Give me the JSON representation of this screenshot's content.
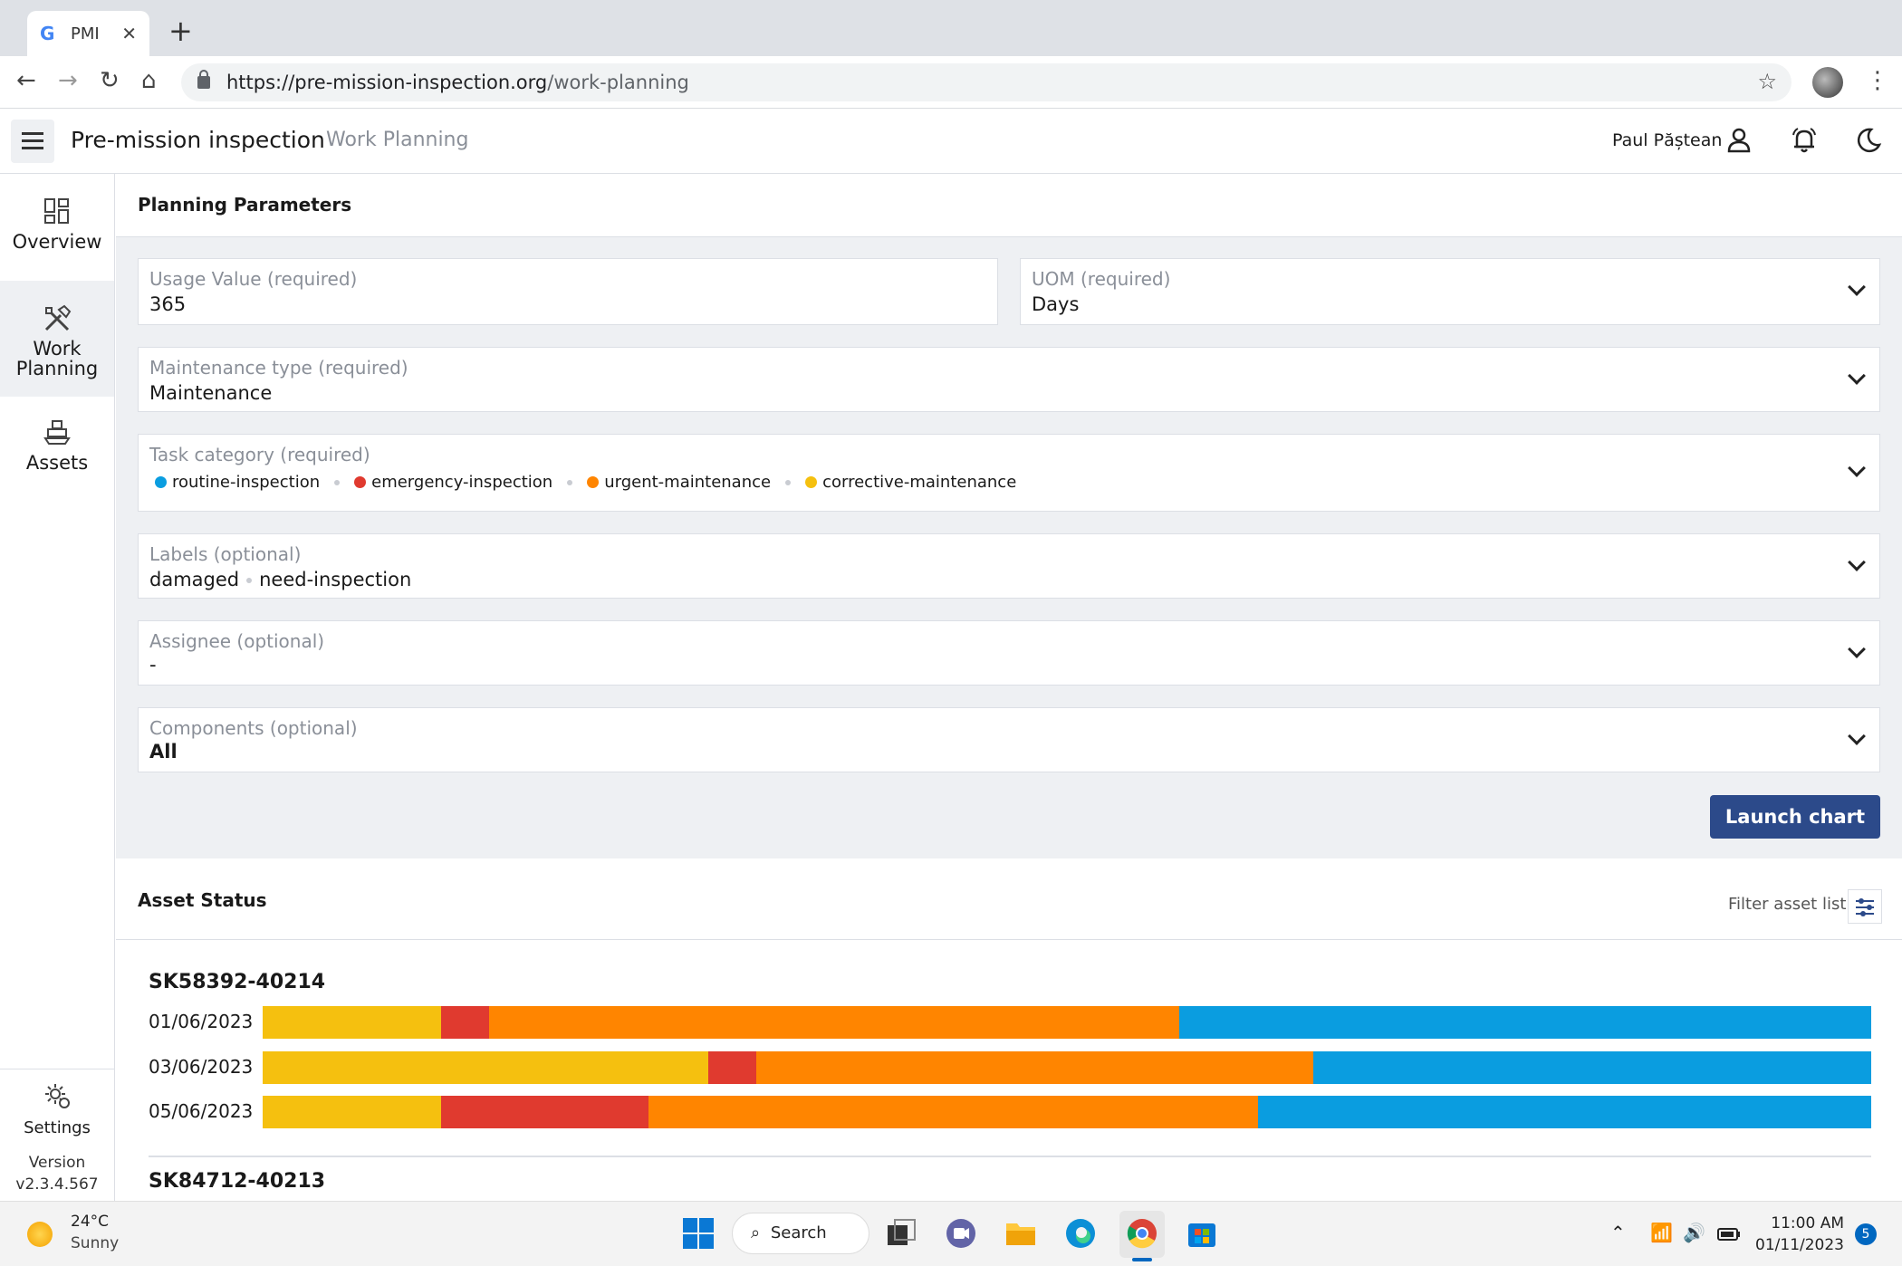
{
  "browser": {
    "tab_title": "PMI",
    "tab_favicon": "G",
    "url_host": "https://pre-mission-inspection.org",
    "url_path": "/work-planning"
  },
  "header": {
    "app_title": "Pre-mission inspection",
    "page_title": "Work Planning",
    "user_name": "Paul Păștean"
  },
  "sidebar": {
    "items": [
      {
        "label": "Overview",
        "icon": "dashboard-icon"
      },
      {
        "label_line1": "Work",
        "label_line2": "Planning",
        "icon": "tools-icon"
      },
      {
        "label": "Assets",
        "icon": "ship-icon"
      }
    ],
    "settings_label": "Settings",
    "version_label": "Version",
    "version_number": "v2.3.4.567"
  },
  "planning": {
    "title": "Planning Parameters",
    "usage_value": {
      "label": "Usage Value (required)",
      "value": "365"
    },
    "uom": {
      "label": "UOM (required)",
      "value": "Days"
    },
    "maintenance_type": {
      "label": "Maintenance type (required)",
      "value": "Maintenance"
    },
    "task_category": {
      "label": "Task category (required)",
      "chips": [
        {
          "name": "routine-inspection",
          "color": "#0a9de0"
        },
        {
          "name": "emergency-inspection",
          "color": "#e03a2f"
        },
        {
          "name": "urgent-maintenance",
          "color": "#ff8500"
        },
        {
          "name": "corrective-maintenance",
          "color": "#f5c00f"
        }
      ]
    },
    "labels": {
      "label": "Labels (optional)",
      "values": [
        "damaged",
        "need-inspection"
      ]
    },
    "assignee": {
      "label": "Assignee (optional)",
      "value": "-"
    },
    "components": {
      "label": "Components (optional)",
      "value": "All"
    },
    "launch_button": "Launch chart"
  },
  "asset_status": {
    "title": "Asset Status",
    "filter_label": "Filter asset list",
    "colors": {
      "corrective": "#f5c00f",
      "emergency": "#e03a2f",
      "urgent": "#ff8500",
      "routine": "#0a9de0"
    },
    "assets": [
      {
        "id": "SK58392-40214",
        "rows": [
          {
            "date": "01/06/2023",
            "segments": [
              11.1,
              3.0,
              42.9,
              43.0
            ]
          },
          {
            "date": "03/06/2023",
            "segments": [
              27.7,
              3.0,
              34.6,
              34.7
            ]
          },
          {
            "date": "05/06/2023",
            "segments": [
              11.1,
              12.9,
              37.9,
              38.1
            ]
          }
        ]
      },
      {
        "id": "SK84712-40213",
        "rows": []
      }
    ]
  },
  "taskbar": {
    "temperature": "24°C",
    "weather": "Sunny",
    "search_label": "Search",
    "time": "11:00 AM",
    "date": "01/11/2023",
    "notifications": "5"
  }
}
